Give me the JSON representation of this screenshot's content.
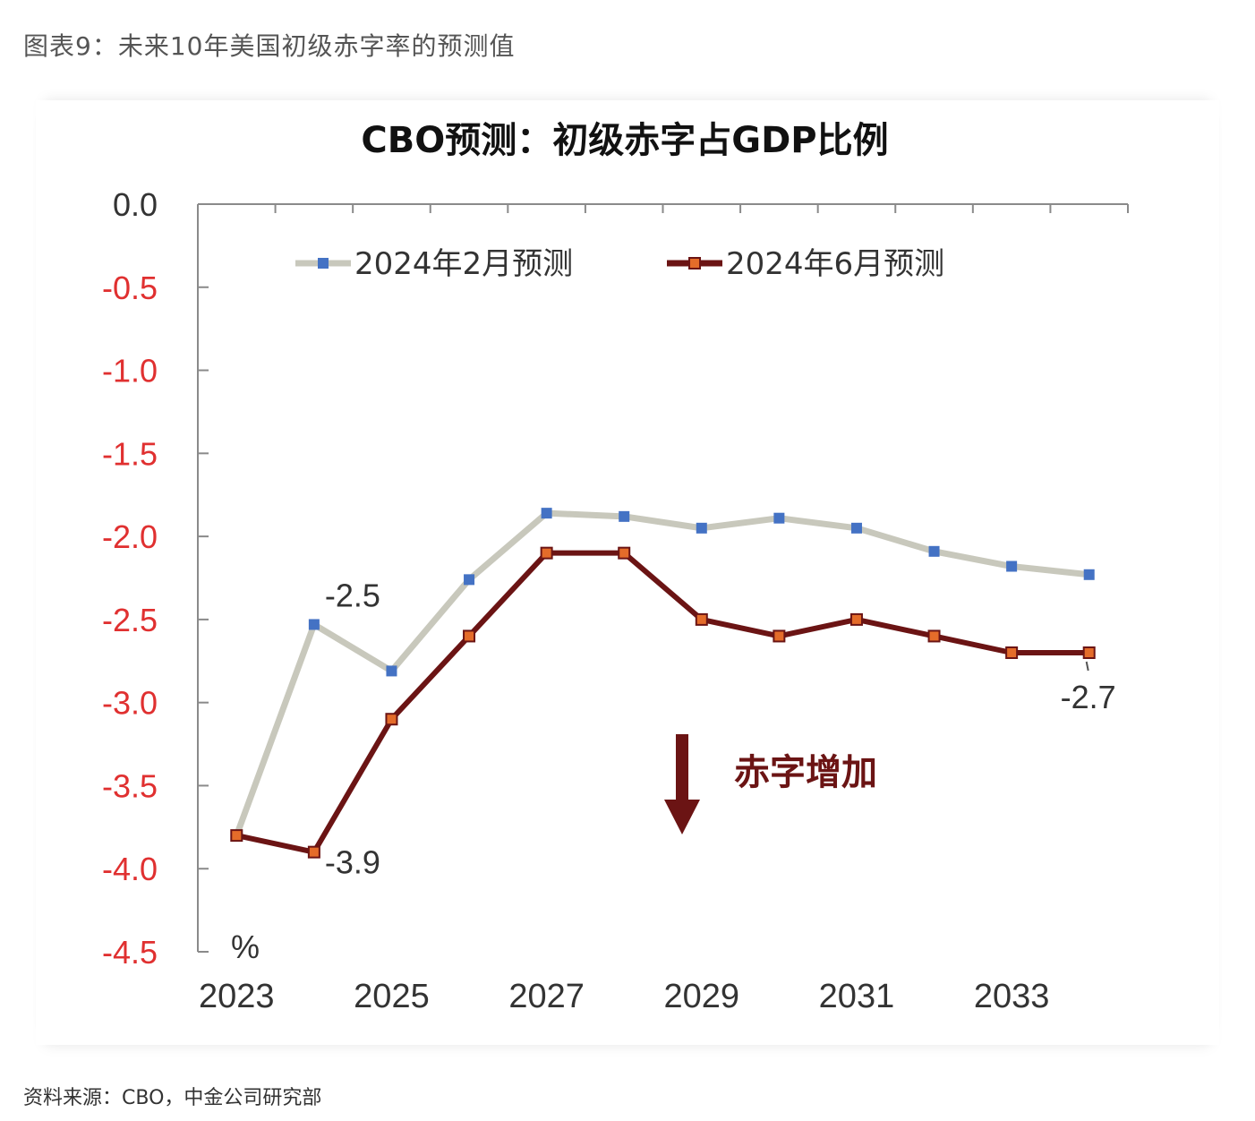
{
  "figure_title": "图表9：未来10年美国初级赤字率的预测值",
  "source": "资料来源：CBO，中金公司研究部",
  "chart_data": {
    "type": "line",
    "title": "CBO预测：初级赤字占GDP比例",
    "ylabel": "%",
    "ylim": [
      -4.5,
      0.0
    ],
    "y_ticks": [
      "0.0",
      "-0.5",
      "-1.0",
      "-1.5",
      "-2.0",
      "-2.5",
      "-3.0",
      "-3.5",
      "-4.0",
      "-4.5"
    ],
    "y_tick_values": [
      0.0,
      -0.5,
      -1.0,
      -1.5,
      -2.0,
      -2.5,
      -3.0,
      -3.5,
      -4.0,
      -4.5
    ],
    "x": [
      2023,
      2024,
      2025,
      2026,
      2027,
      2028,
      2029,
      2030,
      2031,
      2032,
      2033,
      2034
    ],
    "x_tick_labels": [
      "2023",
      "2025",
      "2027",
      "2029",
      "2031",
      "2033"
    ],
    "x_tick_years": [
      2023,
      2025,
      2027,
      2029,
      2031,
      2033
    ],
    "series": [
      {
        "name": "2024年2月预测",
        "line_color": "#c8c8bc",
        "marker_color": "#4472c4",
        "values": [
          -3.8,
          -2.53,
          -2.81,
          -2.26,
          -1.86,
          -1.88,
          -1.95,
          -1.89,
          -1.95,
          -2.09,
          -2.18,
          -2.23
        ]
      },
      {
        "name": "2024年6月预测",
        "line_color": "#6b1414",
        "marker_color": "#e46c2a",
        "values": [
          -3.8,
          -3.9,
          -3.1,
          -2.6,
          -2.1,
          -2.1,
          -2.5,
          -2.6,
          -2.5,
          -2.6,
          -2.7,
          -2.7
        ]
      }
    ],
    "annotations": [
      {
        "text": "-2.5",
        "series": 0,
        "x": 2024
      },
      {
        "text": "-3.9",
        "series": 1,
        "x": 2024
      },
      {
        "text": "-2.7",
        "series": 1,
        "x": 2034
      }
    ],
    "arrow_label": "赤字增加",
    "colors": {
      "tick_negative": "#e03030",
      "tick_zero": "#333333",
      "axis": "#8a8a8a"
    }
  }
}
